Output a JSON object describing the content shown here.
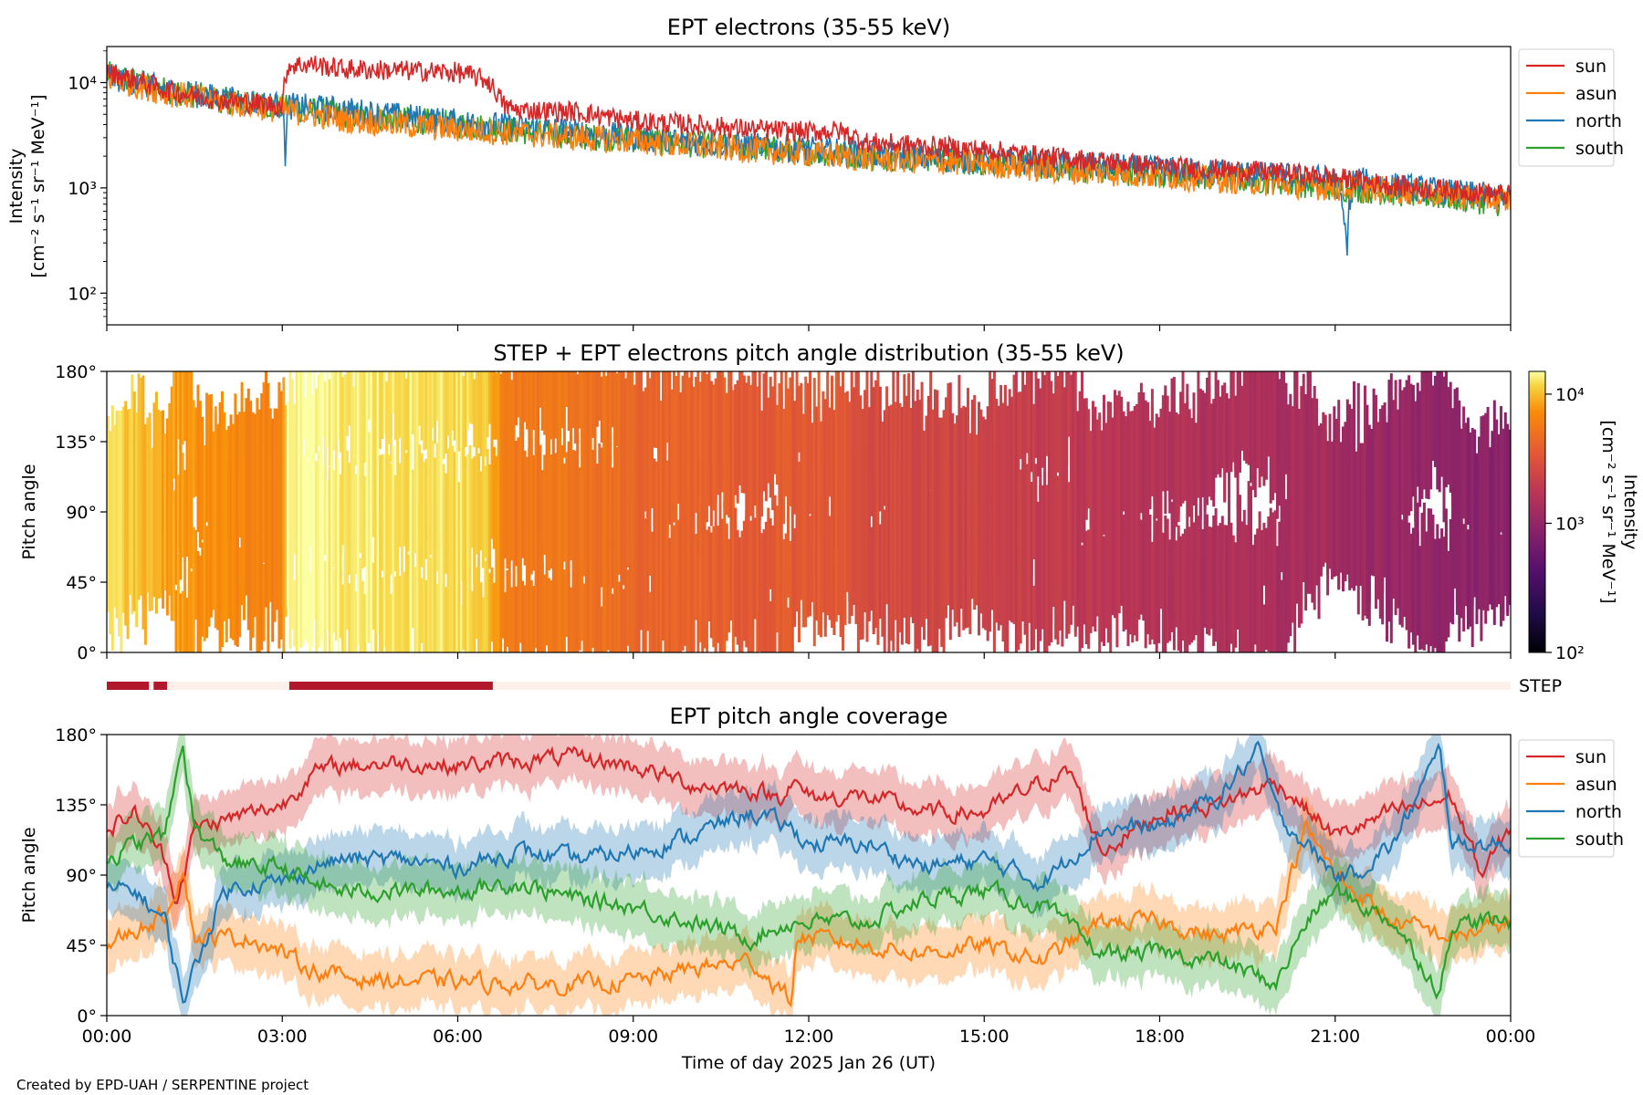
{
  "credit": "Created by EPD-UAH / SERPENTINE project",
  "xlabel": "Time of day 2025 Jan 26 (UT)",
  "x_ticks": [
    "00:00",
    "03:00",
    "06:00",
    "09:00",
    "12:00",
    "15:00",
    "18:00",
    "21:00",
    "00:00"
  ],
  "pitch_ticks": [
    "0°",
    "45°",
    "90°",
    "135°",
    "180°"
  ],
  "colors": {
    "sun": "#d62728",
    "asun": "#ff7f0e",
    "north": "#1f77b4",
    "south": "#2ca02c",
    "step_on": "#b2182b",
    "step_off": "#fdf0ea"
  },
  "chart_data": [
    {
      "id": "intensity",
      "type": "line",
      "title": "EPT electrons (35-55 keV)",
      "ylabel_line1": "Intensity",
      "ylabel_line2": "[cm⁻² s⁻¹ sr⁻¹ MeV⁻¹]",
      "yscale": "log",
      "ylim": [
        50,
        22000
      ],
      "y_ticks": [
        "10²",
        "10³",
        "10⁴"
      ],
      "xlim_hours": [
        0,
        24
      ],
      "legend_position": "outside-right",
      "series": [
        {
          "name": "sun",
          "x_hours": [
            0,
            0.5,
            1,
            1.5,
            2,
            2.5,
            3,
            3.1,
            3.5,
            4,
            5,
            6,
            6.5,
            6.8,
            7,
            8,
            9,
            10,
            11,
            12,
            12.5,
            13,
            14,
            15,
            16,
            17,
            18,
            19,
            20,
            21,
            22,
            23,
            24
          ],
          "y": [
            12500,
            10500,
            8500,
            7500,
            6800,
            6400,
            6000,
            14500,
            15000,
            13500,
            13000,
            12500,
            10500,
            6000,
            5500,
            5300,
            4300,
            4000,
            3600,
            3400,
            3500,
            2700,
            2500,
            2300,
            2000,
            1800,
            1600,
            1500,
            1400,
            1250,
            1050,
            950,
            850
          ]
        },
        {
          "name": "asun",
          "x_hours": [
            0,
            1,
            2,
            3,
            4,
            5,
            6,
            7,
            8,
            9,
            10,
            11,
            12,
            13,
            14,
            15,
            16,
            17,
            18,
            19,
            20,
            21,
            22,
            23,
            24
          ],
          "y": [
            11000,
            8000,
            6500,
            5500,
            4500,
            4000,
            3600,
            3300,
            3000,
            2800,
            2500,
            2300,
            2100,
            1900,
            1800,
            1700,
            1500,
            1400,
            1300,
            1200,
            1100,
            1000,
            950,
            850,
            750
          ]
        },
        {
          "name": "north",
          "x_hours": [
            0,
            1,
            2,
            3,
            3.05,
            3.1,
            4,
            5,
            6,
            7,
            8,
            9,
            10,
            11,
            12,
            13,
            14,
            15,
            16,
            17,
            18,
            19,
            20,
            21,
            21.2,
            21.3,
            22,
            23,
            24
          ],
          "y": [
            11500,
            8500,
            7000,
            6000,
            2000,
            6000,
            5500,
            4800,
            4200,
            3800,
            3400,
            3000,
            2700,
            2500,
            2300,
            2100,
            1900,
            1800,
            1700,
            1600,
            1500,
            1400,
            1300,
            1200,
            250,
            1200,
            1050,
            900,
            800
          ]
        },
        {
          "name": "south",
          "x_hours": [
            0,
            1,
            2,
            3,
            4,
            5,
            6,
            7,
            8,
            9,
            10,
            11,
            12,
            13,
            14,
            15,
            16,
            17,
            18,
            19,
            20,
            21,
            22,
            23,
            24
          ],
          "y": [
            12000,
            8500,
            6800,
            5800,
            5000,
            4500,
            4000,
            3500,
            3100,
            2900,
            2600,
            2400,
            2200,
            2000,
            1900,
            1750,
            1600,
            1450,
            1350,
            1250,
            1150,
            1000,
            900,
            800,
            700
          ]
        }
      ]
    },
    {
      "id": "pad",
      "type": "heatmap",
      "title": "STEP + EPT electrons pitch angle distribution (35-55 keV)",
      "ylabel": "Pitch angle",
      "ylim": [
        0,
        180
      ],
      "xlim_hours": [
        0,
        24
      ],
      "colorbar": {
        "label_line1": "Intensity",
        "label_line2": "[cm⁻² s⁻¹ sr⁻¹ MeV⁻¹]",
        "scale": "log",
        "range": [
          100,
          15000
        ],
        "ticks": [
          "10²",
          "10³",
          "10⁴"
        ]
      }
    },
    {
      "id": "step_coverage",
      "type": "bar",
      "label": "STEP",
      "on_intervals_hours": [
        [
          0.0,
          0.72
        ],
        [
          0.8,
          1.03
        ],
        [
          3.12,
          6.6
        ]
      ]
    },
    {
      "id": "coverage",
      "type": "line",
      "title": "EPT pitch angle coverage",
      "ylabel": "Pitch angle",
      "ylim": [
        0,
        180
      ],
      "xlim_hours": [
        0,
        24
      ],
      "legend_position": "outside-right",
      "series": [
        {
          "name": "sun",
          "x_hours": [
            0,
            0.5,
            1,
            1.2,
            1.5,
            2,
            2.5,
            3,
            3.5,
            4,
            5,
            6,
            7,
            8,
            9,
            10,
            11,
            11.5,
            11.7,
            12,
            13,
            14,
            15,
            16,
            16.5,
            17,
            18,
            19,
            20,
            21,
            22,
            23,
            23.5,
            24
          ],
          "y": [
            120,
            130,
            100,
            75,
            120,
            125,
            130,
            135,
            155,
            160,
            162,
            160,
            163,
            165,
            160,
            148,
            145,
            140,
            150,
            140,
            140,
            130,
            130,
            150,
            155,
            105,
            130,
            135,
            150,
            115,
            130,
            140,
            90,
            120
          ]
        },
        {
          "name": "asun",
          "x_hours": [
            0,
            0.5,
            1,
            1.3,
            1.5,
            2,
            2.5,
            3,
            3.5,
            4,
            5,
            6,
            7,
            8,
            9,
            10,
            11,
            11.7,
            11.8,
            12,
            13,
            14,
            15,
            16,
            17,
            18,
            19,
            20,
            20.5,
            21,
            22,
            23,
            24
          ],
          "y": [
            45,
            55,
            65,
            95,
            50,
            50,
            50,
            40,
            30,
            25,
            22,
            22,
            20,
            20,
            22,
            30,
            35,
            10,
            50,
            50,
            45,
            40,
            45,
            35,
            60,
            60,
            50,
            60,
            120,
            90,
            60,
            50,
            60
          ]
        },
        {
          "name": "north",
          "x_hours": [
            0,
            0.5,
            1,
            1.3,
            1.5,
            2,
            2.5,
            3,
            3.5,
            4,
            5,
            6,
            7,
            8,
            9,
            10,
            11,
            11.7,
            12,
            13,
            14,
            15,
            16,
            17,
            18,
            19,
            19.7,
            20,
            21,
            21.3,
            22,
            22.8,
            23,
            24
          ],
          "y": [
            80,
            80,
            60,
            10,
            30,
            80,
            85,
            85,
            95,
            100,
            100,
            95,
            105,
            100,
            105,
            115,
            130,
            120,
            110,
            110,
            95,
            100,
            85,
            120,
            120,
            140,
            170,
            130,
            90,
            90,
            110,
            170,
            110,
            110
          ]
        },
        {
          "name": "south",
          "x_hours": [
            0,
            0.5,
            1,
            1.3,
            1.5,
            2,
            2.5,
            3,
            3.5,
            4,
            5,
            6,
            7,
            8,
            9,
            10,
            11,
            11.7,
            12,
            13,
            14,
            15,
            16,
            17,
            18,
            19,
            20,
            20.5,
            21,
            22,
            22.8,
            23,
            24
          ],
          "y": [
            100,
            110,
            115,
            175,
            120,
            100,
            95,
            95,
            85,
            80,
            80,
            80,
            85,
            75,
            70,
            60,
            50,
            60,
            60,
            60,
            75,
            80,
            70,
            40,
            40,
            35,
            20,
            60,
            80,
            60,
            15,
            60,
            60
          ]
        }
      ]
    }
  ]
}
